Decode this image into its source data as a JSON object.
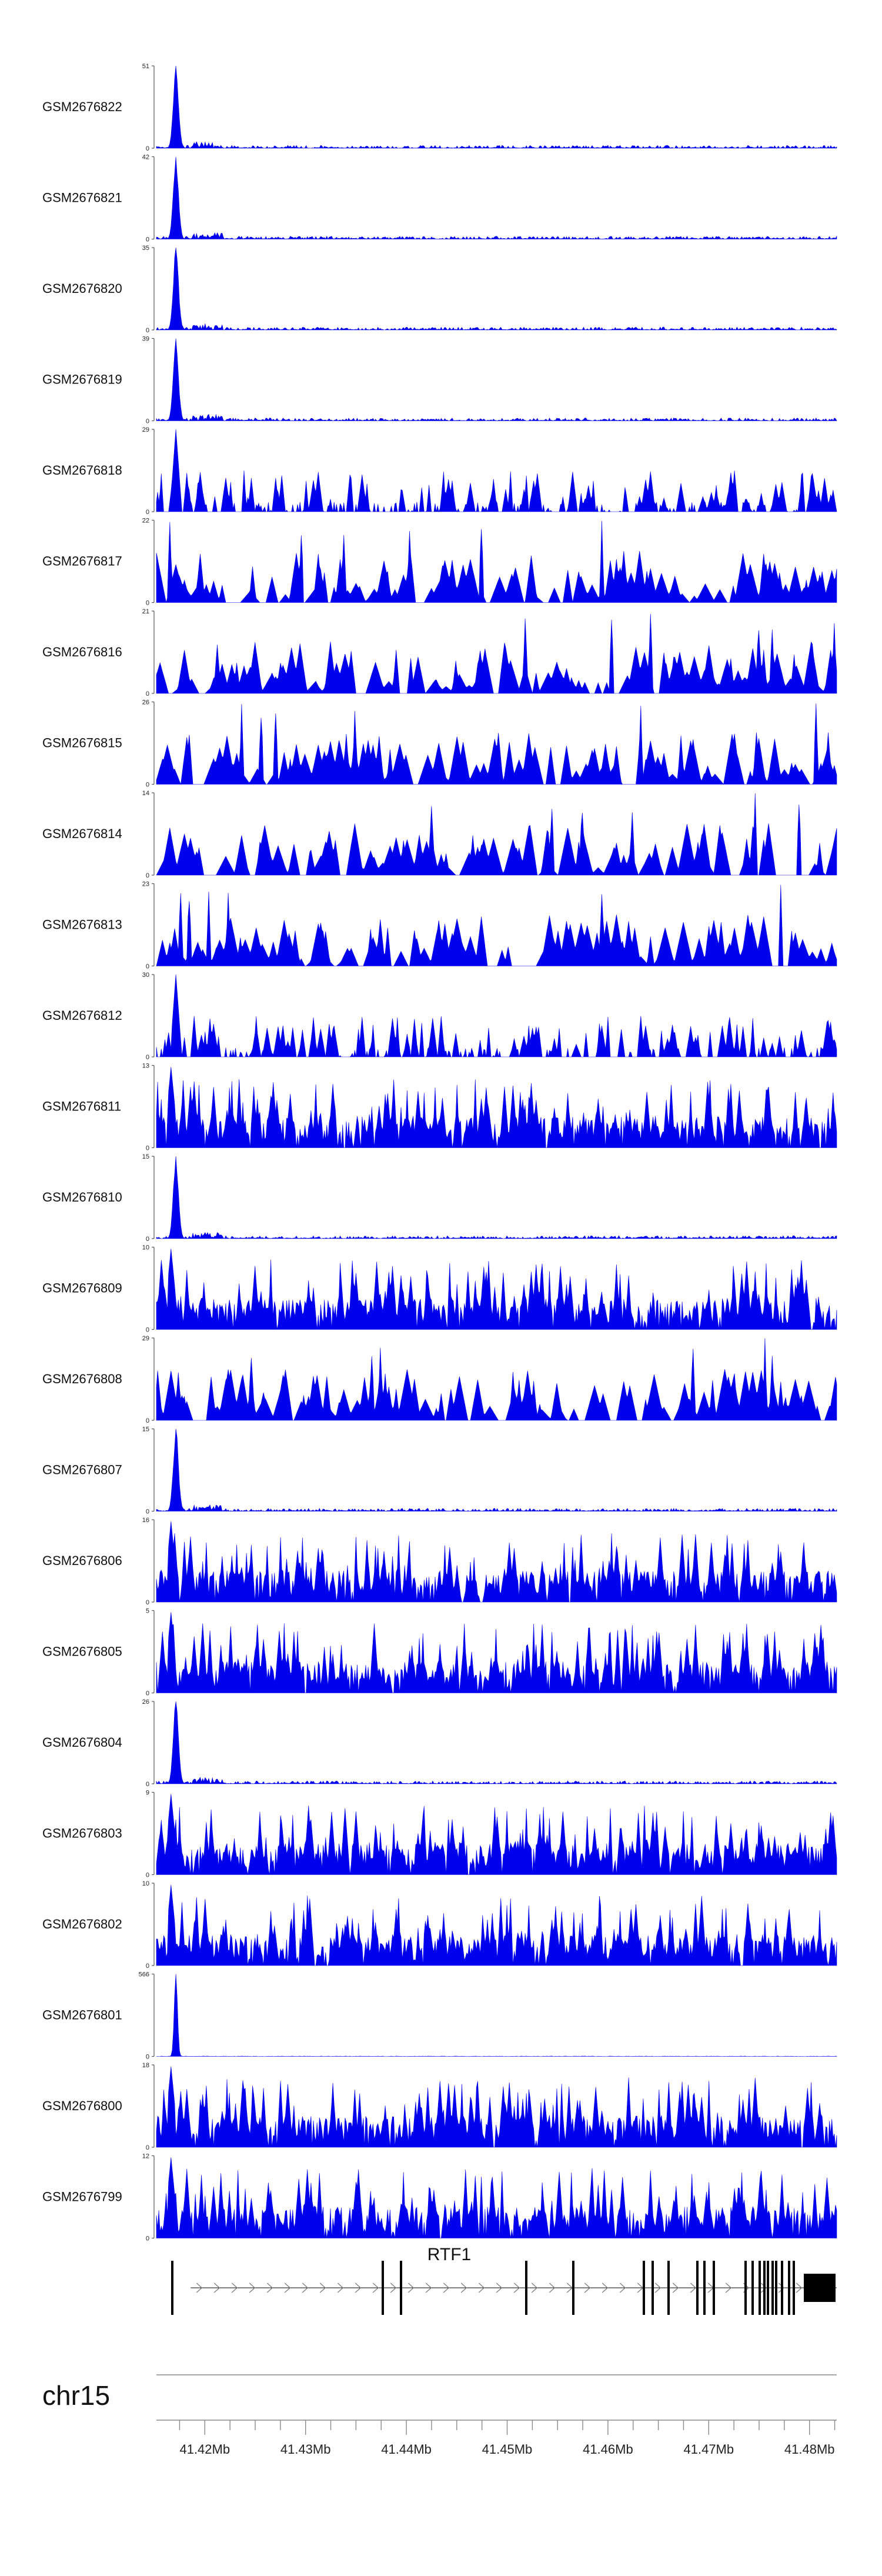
{
  "chart_data": {
    "type": "area",
    "chromosome": "chr15",
    "colors": {
      "signal": "#0000ee",
      "axis": "#555555",
      "gene": "#000000"
    },
    "gene": {
      "name": "RTF1",
      "strand": "+",
      "start": 41.4186,
      "end": 41.4857
    },
    "genomic_axis": {
      "range": [
        41.4152,
        41.4827
      ],
      "ticks": [
        41.42,
        41.43,
        41.44,
        41.45,
        41.46,
        41.47,
        41.48
      ],
      "tick_labels": [
        "41.42Mb",
        "41.43Mb",
        "41.44Mb",
        "41.45Mb",
        "41.46Mb",
        "41.47Mb",
        "41.48Mb"
      ],
      "minor_tick_step": 0.0025
    },
    "tracks": [
      {
        "name": "GSM2676822",
        "ymax": 51,
        "profile": "peak"
      },
      {
        "name": "GSM2676821",
        "ymax": 42,
        "profile": "peak"
      },
      {
        "name": "GSM2676820",
        "ymax": 35,
        "profile": "peak"
      },
      {
        "name": "GSM2676819",
        "ymax": 39,
        "profile": "peak"
      },
      {
        "name": "GSM2676818",
        "ymax": 29,
        "profile": "spiky"
      },
      {
        "name": "GSM2676817",
        "ymax": 22,
        "profile": "sparse"
      },
      {
        "name": "GSM2676816",
        "ymax": 21,
        "profile": "sparse"
      },
      {
        "name": "GSM2676815",
        "ymax": 26,
        "profile": "sparse"
      },
      {
        "name": "GSM2676814",
        "ymax": 14,
        "profile": "sparse"
      },
      {
        "name": "GSM2676813",
        "ymax": 23,
        "profile": "sparse"
      },
      {
        "name": "GSM2676812",
        "ymax": 30,
        "profile": "spiky"
      },
      {
        "name": "GSM2676811",
        "ymax": 13,
        "profile": "dense"
      },
      {
        "name": "GSM2676810",
        "ymax": 15,
        "profile": "peak"
      },
      {
        "name": "GSM2676809",
        "ymax": 10,
        "profile": "dense"
      },
      {
        "name": "GSM2676808",
        "ymax": 29,
        "profile": "sparse"
      },
      {
        "name": "GSM2676807",
        "ymax": 15,
        "profile": "peak"
      },
      {
        "name": "GSM2676806",
        "ymax": 16,
        "profile": "dense"
      },
      {
        "name": "GSM2676805",
        "ymax": 5,
        "profile": "dense"
      },
      {
        "name": "GSM2676804",
        "ymax": 26,
        "profile": "peak"
      },
      {
        "name": "GSM2676803",
        "ymax": 9,
        "profile": "dense"
      },
      {
        "name": "GSM2676802",
        "ymax": 10,
        "profile": "dense"
      },
      {
        "name": "GSM2676801",
        "ymax": 566,
        "profile": "single"
      },
      {
        "name": "GSM2676800",
        "ymax": 18,
        "profile": "dense"
      },
      {
        "name": "GSM2676799",
        "ymax": 12,
        "profile": "dense"
      }
    ]
  }
}
